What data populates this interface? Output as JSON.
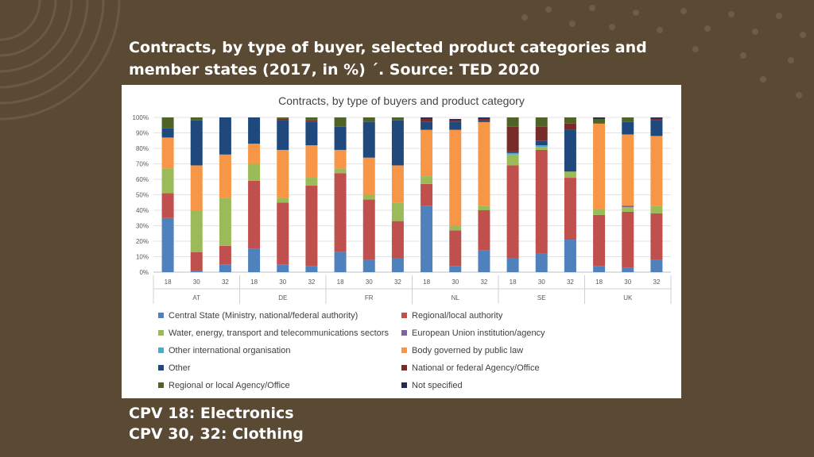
{
  "slide": {
    "title": "Contracts, by type of buyer, selected product categories and member states (2017, in %) ´. Source: TED 2020",
    "caption_line1": "CPV 18: Electronics",
    "caption_line2": "CPV 30, 32: Clothing"
  },
  "chart_data": {
    "type": "bar",
    "stacked": true,
    "title": "Contracts, by type of buyers and product category",
    "ylim": [
      0,
      100
    ],
    "yticks": [
      0,
      10,
      20,
      30,
      40,
      50,
      60,
      70,
      80,
      90,
      100
    ],
    "ytick_suffix": "%",
    "groups": [
      "AT",
      "DE",
      "FR",
      "NL",
      "SE",
      "UK"
    ],
    "categories": [
      "18",
      "30",
      "32",
      "18",
      "30",
      "32",
      "18",
      "30",
      "32",
      "18",
      "30",
      "32",
      "18",
      "30",
      "32",
      "18",
      "30",
      "32"
    ],
    "legend_position": "bottom",
    "series": [
      {
        "name": "Central State (Ministry, national/federal authority)",
        "color": "#4f81bd",
        "values": [
          35,
          1,
          5,
          15,
          5,
          4,
          13,
          8,
          9,
          43,
          4,
          14,
          9,
          12,
          21,
          4,
          3,
          8
        ]
      },
      {
        "name": "Regional/local authority",
        "color": "#c0504d",
        "values": [
          16,
          12,
          12,
          44,
          40,
          52,
          51,
          39,
          24,
          14,
          23,
          26,
          60,
          67,
          40,
          33,
          36,
          30
        ]
      },
      {
        "name": "Water, energy, transport and telecommunications sectors",
        "color": "#9bbb59",
        "values": [
          16,
          27,
          31,
          11,
          3,
          5,
          3,
          3,
          12,
          5,
          3,
          3,
          7,
          2,
          4,
          4,
          3,
          5
        ]
      },
      {
        "name": "European Union institution/agency",
        "color": "#8064a2",
        "values": [
          0,
          0,
          0,
          0,
          0,
          0,
          0,
          0,
          0,
          0,
          0,
          0,
          0,
          0,
          0,
          0,
          1,
          0
        ]
      },
      {
        "name": "Other international organisation",
        "color": "#4bacc6",
        "values": [
          0,
          0,
          0,
          0,
          0,
          0,
          0,
          0,
          0,
          0,
          0,
          0,
          1,
          1,
          0,
          0,
          0,
          0
        ]
      },
      {
        "name": "Body governed by public law",
        "color": "#f79646",
        "values": [
          20,
          29,
          28,
          13,
          31,
          21,
          12,
          24,
          24,
          30,
          62,
          54,
          0,
          0,
          0,
          55,
          46,
          45
        ]
      },
      {
        "name": "Other",
        "color": "#1f497d",
        "values": [
          6,
          29,
          24,
          17,
          19,
          15,
          15,
          23,
          29,
          5,
          5,
          1,
          1,
          3,
          27,
          0,
          8,
          10
        ]
      },
      {
        "name": "National or federal Agency/Office",
        "color": "#772c2a",
        "values": [
          0,
          0,
          0,
          0,
          1,
          1,
          0,
          0,
          0,
          2,
          1,
          1,
          16,
          9,
          4,
          0,
          0,
          1
        ]
      },
      {
        "name": "Regional or local Agency/Office",
        "color": "#4f6228",
        "values": [
          7,
          2,
          0,
          0,
          1,
          2,
          6,
          3,
          2,
          0,
          0,
          0,
          6,
          6,
          4,
          3,
          3,
          0
        ]
      },
      {
        "name": "Not specified",
        "color": "#232b52",
        "values": [
          0,
          0,
          0,
          0,
          0,
          0,
          0,
          0,
          0,
          1,
          1,
          1,
          0,
          0,
          0,
          1,
          0,
          1
        ]
      }
    ]
  }
}
